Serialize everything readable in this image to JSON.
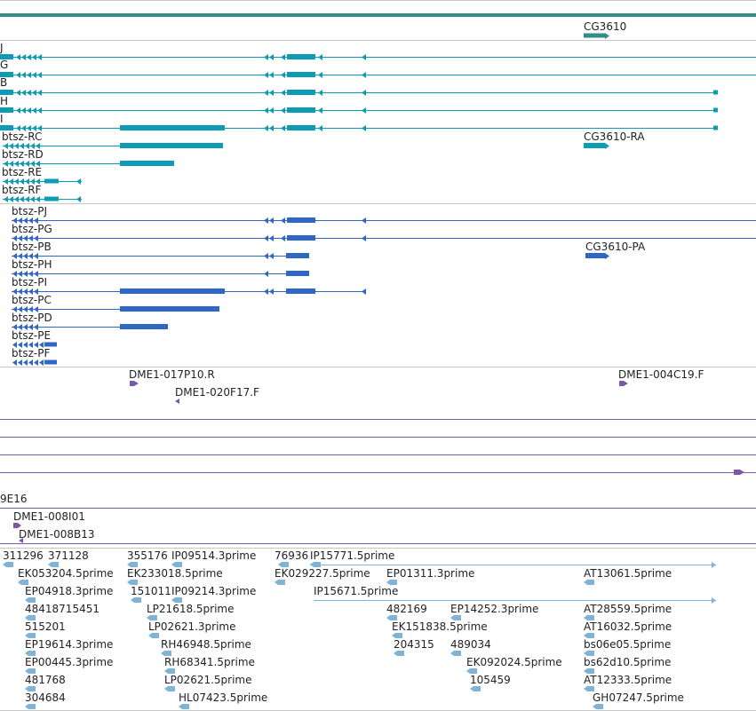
{
  "gene_track": {
    "label": "CG3610",
    "color": "#2f8f86"
  },
  "mrna_track": {
    "color": "#0e9bb5",
    "rows": [
      {
        "label": "J"
      },
      {
        "label": "G"
      },
      {
        "label": "B"
      },
      {
        "label": "H"
      },
      {
        "label": "I"
      },
      {
        "label": "btsz-RC"
      },
      {
        "label": "btsz-RD"
      },
      {
        "label": "btsz-RE"
      },
      {
        "label": "btsz-RF"
      }
    ],
    "right_label": "CG3610-RA"
  },
  "cds_track": {
    "color": "#2f67c6",
    "rows": [
      {
        "label": "btsz-PJ"
      },
      {
        "label": "btsz-PG"
      },
      {
        "label": "btsz-PB"
      },
      {
        "label": "btsz-PH"
      },
      {
        "label": "btsz-PI"
      },
      {
        "label": "btsz-PC"
      },
      {
        "label": "btsz-PD"
      },
      {
        "label": "btsz-PE"
      },
      {
        "label": "btsz-PF"
      }
    ],
    "right_label": "CG3610-PA"
  },
  "bac_track": {
    "color": "#7a5aa6",
    "items": [
      {
        "label": "DME1-017P10.R"
      },
      {
        "label": "DME1-004C19.F"
      },
      {
        "label": "DME1-020F17.F"
      },
      {
        "label": "9E16"
      },
      {
        "label": "DME1-008I01"
      },
      {
        "label": "DME1-008B13"
      }
    ]
  },
  "est_track": {
    "color": "#7fb4d8",
    "labels": [
      "311296",
      "371128",
      "355176",
      "IP09514.3prime",
      "76936",
      "IP15771.5prime",
      "EK053204.5prime",
      "EK233018.5prime",
      "EK029227.5prime",
      "EP01311.3prime",
      "AT13061.5prime",
      "EP04918.3prime",
      "151011",
      "IP09214.3prime",
      "IP15671.5prime",
      "48418715451",
      "LP21618.5prime",
      "482169",
      "EP14252.3prime",
      "AT28559.5prime",
      "515201",
      "LP02621.3prime",
      "EK151838.5prime",
      "AT16032.5prime",
      "EP19614.3prime",
      "RH46948.5prime",
      "204315",
      "489034",
      "bs06e05.5prime",
      "EP00445.3prime",
      "RH68341.5prime",
      "EK092024.5prime",
      "bs62d10.5prime",
      "481768",
      "LP02621.5prime",
      "105459",
      "AT12333.5prime",
      "304684",
      "HL07423.5prime",
      "GH07247.5prime"
    ]
  }
}
